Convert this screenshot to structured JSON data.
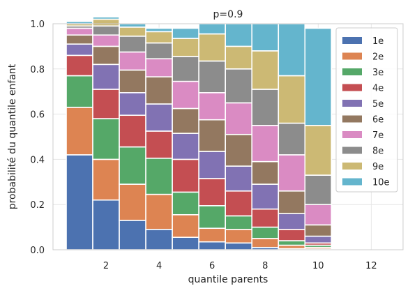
{
  "chart_data": {
    "type": "bar",
    "stacked": true,
    "title": "p=0.9",
    "xlabel": "quantile parents",
    "ylabel": "probabilité du quantile enfant",
    "xlim": [
      0,
      13.2
    ],
    "ylim": [
      0,
      1.0
    ],
    "xticks": [
      2,
      4,
      6,
      8,
      10,
      12
    ],
    "xtick_labels": [
      "2",
      "4",
      "6",
      "8",
      "10",
      "12"
    ],
    "yticks": [
      0,
      0.2,
      0.4,
      0.6,
      0.8,
      1.0
    ],
    "ytick_labels": [
      "0.0",
      "0.2",
      "0.4",
      "0.6",
      "0.8",
      "1.0"
    ],
    "grid": true,
    "legend_position": "top-right",
    "x": [
      1,
      2,
      3,
      4,
      5,
      6,
      7,
      8,
      9,
      10
    ],
    "series": [
      {
        "name": "1e",
        "color": "#4c72b0",
        "values": [
          0.42,
          0.22,
          0.13,
          0.09,
          0.055,
          0.035,
          0.03,
          0.01,
          0.005,
          0.003
        ]
      },
      {
        "name": "2e",
        "color": "#dd8452",
        "values": [
          0.21,
          0.18,
          0.16,
          0.155,
          0.1,
          0.06,
          0.06,
          0.04,
          0.015,
          0.007
        ]
      },
      {
        "name": "3e",
        "color": "#55a868",
        "values": [
          0.14,
          0.18,
          0.165,
          0.16,
          0.1,
          0.1,
          0.06,
          0.05,
          0.02,
          0.01
        ]
      },
      {
        "name": "4e",
        "color": "#c44e52",
        "values": [
          0.09,
          0.13,
          0.14,
          0.12,
          0.145,
          0.12,
          0.11,
          0.08,
          0.05,
          0.01
        ]
      },
      {
        "name": "5e",
        "color": "#8172b3",
        "values": [
          0.05,
          0.11,
          0.1,
          0.12,
          0.115,
          0.12,
          0.11,
          0.11,
          0.07,
          0.03
        ]
      },
      {
        "name": "6e",
        "color": "#937860",
        "values": [
          0.04,
          0.08,
          0.1,
          0.12,
          0.11,
          0.14,
          0.14,
          0.1,
          0.1,
          0.05
        ]
      },
      {
        "name": "7e",
        "color": "#da8bc3",
        "values": [
          0.03,
          0.05,
          0.08,
          0.08,
          0.12,
          0.12,
          0.14,
          0.16,
          0.16,
          0.09
        ]
      },
      {
        "name": "8e",
        "color": "#8c8c8c",
        "values": [
          0.01,
          0.04,
          0.07,
          0.07,
          0.11,
          0.14,
          0.15,
          0.16,
          0.14,
          0.13
        ]
      },
      {
        "name": "9e",
        "color": "#ccb974",
        "values": [
          0.01,
          0.03,
          0.04,
          0.05,
          0.08,
          0.12,
          0.1,
          0.17,
          0.21,
          0.22
        ]
      },
      {
        "name": "10e",
        "color": "#64b5cd",
        "values": [
          0.01,
          0.01,
          0.015,
          0.015,
          0.045,
          0.045,
          0.1,
          0.12,
          0.23,
          0.43
        ]
      }
    ]
  }
}
